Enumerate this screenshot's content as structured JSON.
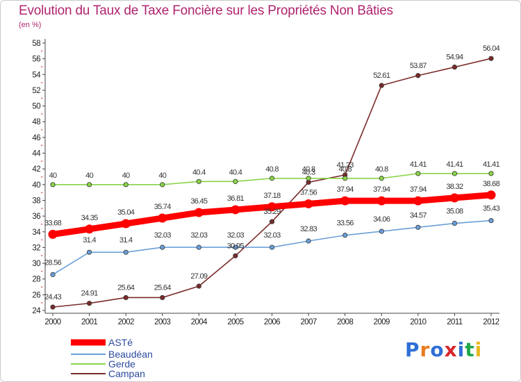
{
  "title": "Evolution du Taux de Taxe Foncière sur les Propriétés Non Bâties",
  "subtitle": "(en %)",
  "logo_text": "Proxiti",
  "chart_data": {
    "type": "line",
    "title": "Evolution du Taux de Taxe Foncière sur les Propriétés Non Bâties",
    "ylabel": "(en %)",
    "xlabel": "",
    "categories": [
      "2000",
      "2001",
      "2002",
      "2003",
      "2004",
      "2005",
      "2006",
      "2007",
      "2008",
      "2009",
      "2010",
      "2011",
      "2012"
    ],
    "ylim": [
      24,
      58
    ],
    "yticks": [
      24,
      26,
      28,
      30,
      32,
      34,
      36,
      38,
      40,
      42,
      44,
      46,
      48,
      50,
      52,
      54,
      56,
      58
    ],
    "grid": false,
    "legend": "bottom-left",
    "series": [
      {
        "name": "ASTé",
        "color": "#ff0000",
        "values": [
          33.68,
          34.35,
          35.04,
          35.74,
          36.45,
          36.81,
          37.18,
          37.56,
          37.94,
          37.94,
          37.94,
          38.32,
          38.68
        ],
        "labels": [
          "33.68",
          "34.35",
          "35.04",
          "35.74",
          "36.45",
          "36.81",
          "37.18",
          "37.56",
          "37.94",
          "37.94",
          "37.94",
          "38.32",
          "38.68"
        ]
      },
      {
        "name": "Beaudéan",
        "color": "#6a9fd8",
        "values": [
          28.56,
          31.4,
          31.4,
          32.03,
          32.03,
          32.03,
          32.03,
          32.83,
          33.56,
          34.06,
          34.57,
          35.08,
          35.43
        ],
        "labels": [
          "28.56",
          "31.4",
          "31.4",
          "32.03",
          "32.03",
          "32.03",
          "32.03",
          "32.83",
          "33.56",
          "34.06",
          "34.57",
          "35.08",
          "35.43"
        ]
      },
      {
        "name": "Gerde",
        "color": "#88d448",
        "values": [
          40,
          40,
          40,
          40,
          40.4,
          40.4,
          40.8,
          40.8,
          40.8,
          40.8,
          41.41,
          41.41,
          41.41
        ],
        "labels": [
          "40",
          "40",
          "40",
          "40",
          "40.4",
          "40.4",
          "40.8",
          "40.8",
          "40.8",
          "40.8",
          "41.41",
          "41.41",
          "41.41"
        ]
      },
      {
        "name": "Campan",
        "color": "#7a2a2a",
        "values": [
          24.43,
          24.91,
          25.64,
          25.64,
          27.09,
          30.95,
          35.29,
          40.3,
          41.23,
          52.61,
          53.87,
          54.94,
          56.04
        ],
        "labels": [
          "24.43",
          "24.91",
          "25.64",
          "25.64",
          "27.09",
          "30.95",
          "35.29",
          "40.3",
          "41.23",
          "52.61",
          "53.87",
          "54.94",
          "56.04"
        ]
      }
    ]
  }
}
